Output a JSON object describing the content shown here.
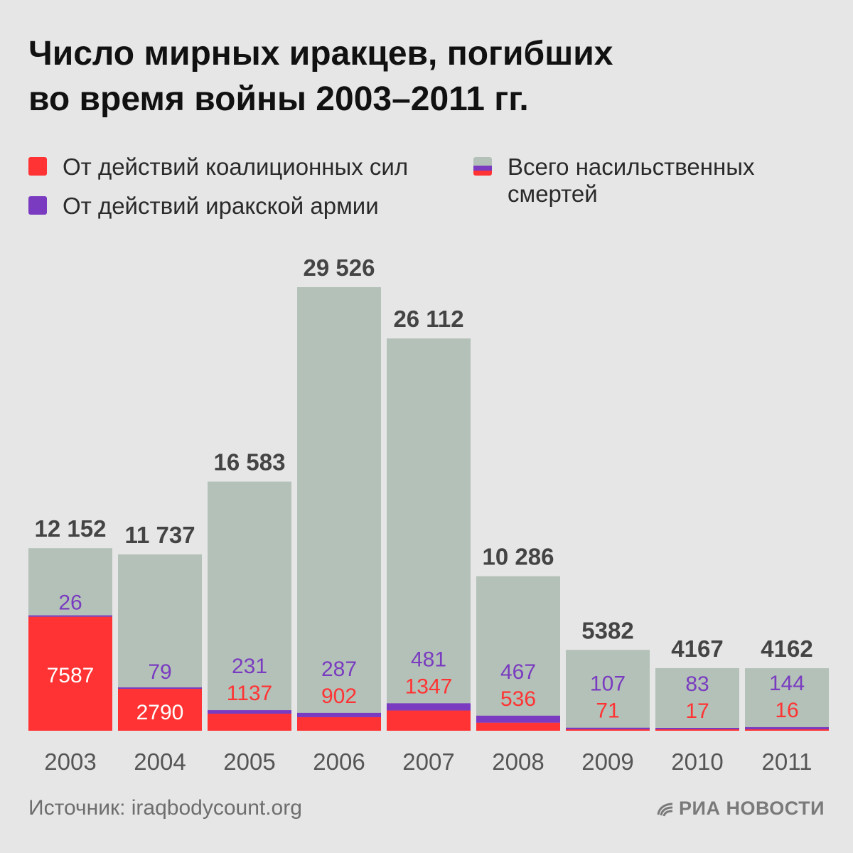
{
  "title": {
    "line1": "Число мирных иракцев, погибших",
    "line2": "во время войны 2003–2011 гг."
  },
  "legend": {
    "coalition": "От действий коалиционных сил",
    "iraqi_army": "От действий иракской армии",
    "total_line1": "Всего насильственных",
    "total_line2": "смертей"
  },
  "colors": {
    "total": "#b3c1b8",
    "coalition": "#ff3333",
    "iraqi_army": "#7a3bc0",
    "value_text": "#444444",
    "axis_text": "#555555"
  },
  "chart_data": {
    "type": "bar",
    "categories": [
      "2003",
      "2004",
      "2005",
      "2006",
      "2007",
      "2008",
      "2009",
      "2010",
      "2011"
    ],
    "total_labels": [
      "12 152",
      "11 737",
      "16 583",
      "29 526",
      "26 112",
      "10 286",
      "5382",
      "4167",
      "4162"
    ],
    "series": [
      {
        "name": "Всего насильственных смертей",
        "values": [
          12152,
          11737,
          16583,
          29526,
          26112,
          10286,
          5382,
          4167,
          4162
        ]
      },
      {
        "name": "От действий коалиционных сил",
        "values": [
          7587,
          2790,
          1137,
          902,
          1347,
          536,
          71,
          17,
          16
        ]
      },
      {
        "name": "От действий иракской армии",
        "values": [
          26,
          79,
          231,
          287,
          481,
          467,
          107,
          83,
          144
        ]
      }
    ],
    "ylim": [
      0,
      29526
    ]
  },
  "footer": {
    "source": "Источник: iraqbodycount.org",
    "logo": "РИА НОВОСТИ"
  }
}
